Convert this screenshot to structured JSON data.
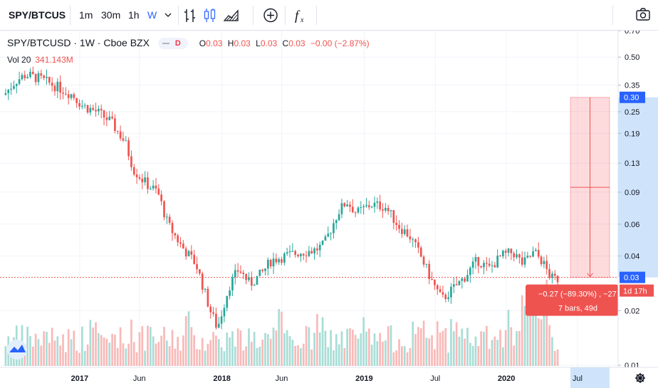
{
  "toolbar": {
    "symbol": "SPY/BTCUSD",
    "intervals": [
      "1m",
      "30m",
      "1h",
      "W"
    ],
    "active_interval": "W",
    "icons": [
      "chevron-down-icon",
      "bar-chart-icon",
      "candles-icon",
      "area-chart-icon",
      "add-compare-icon",
      "indicators-icon",
      "camera-icon"
    ]
  },
  "legend": {
    "title": "SPY/BTCUSD · 1W · Cboe BZX",
    "badge": "D",
    "o_label": "O",
    "o_value": "0.03",
    "h_label": "H",
    "h_value": "0.03",
    "l_label": "L",
    "l_value": "0.03",
    "c_label": "C",
    "c_value": "0.03",
    "change": "−0.00 (−2.87%)"
  },
  "volume": {
    "label": "Vol 20",
    "value": "341.143M"
  },
  "colors": {
    "up": "#26a69a",
    "down": "#ef5350",
    "accent": "#2962ff",
    "volume_up": "#a8ddd6",
    "volume_down": "#f8b9b8"
  },
  "measure": {
    "line1": "−0.27 (−89.30%) , −27",
    "line2": "7 bars, 49d",
    "top_price": "0.30",
    "countdown": "1d 17h"
  },
  "chart_data": {
    "type": "candlestick",
    "scale": "log",
    "last_price": "0.03",
    "y_ticks": [
      "0.70",
      "0.50",
      "0.35",
      "0.25",
      "0.19",
      "0.13",
      "0.09",
      "0.06",
      "0.04",
      "0.02",
      "0.01"
    ],
    "y_tick_values": [
      0.7,
      0.5,
      0.35,
      0.25,
      0.19,
      0.13,
      0.09,
      0.06,
      0.04,
      0.02,
      0.01
    ],
    "x_ticks": [
      "2017",
      "Jun",
      "2018",
      "Jun",
      "2019",
      "Jul",
      "2020",
      "Jul"
    ],
    "x_tick_bold": [
      true,
      false,
      true,
      false,
      true,
      false,
      true,
      false
    ],
    "x_tick_times": [
      2017.0,
      2017.42,
      2018.0,
      2018.42,
      2019.0,
      2019.5,
      2020.0,
      2020.5
    ],
    "x_range": [
      2016.47,
      2020.37
    ],
    "anchors": [
      [
        2016.47,
        0.31
      ],
      [
        2016.55,
        0.37
      ],
      [
        2016.62,
        0.4
      ],
      [
        2016.72,
        0.38
      ],
      [
        2016.85,
        0.34
      ],
      [
        2016.95,
        0.31
      ],
      [
        2017.02,
        0.27
      ],
      [
        2017.12,
        0.25
      ],
      [
        2017.22,
        0.22
      ],
      [
        2017.32,
        0.17
      ],
      [
        2017.38,
        0.12
      ],
      [
        2017.47,
        0.1
      ],
      [
        2017.55,
        0.09
      ],
      [
        2017.62,
        0.06
      ],
      [
        2017.72,
        0.045
      ],
      [
        2017.82,
        0.036
      ],
      [
        2017.92,
        0.02
      ],
      [
        2017.97,
        0.016
      ],
      [
        2018.05,
        0.027
      ],
      [
        2018.12,
        0.034
      ],
      [
        2018.2,
        0.028
      ],
      [
        2018.28,
        0.032
      ],
      [
        2018.35,
        0.038
      ],
      [
        2018.45,
        0.04
      ],
      [
        2018.55,
        0.042
      ],
      [
        2018.65,
        0.043
      ],
      [
        2018.72,
        0.046
      ],
      [
        2018.82,
        0.07
      ],
      [
        2018.88,
        0.08
      ],
      [
        2018.95,
        0.069
      ],
      [
        2019.05,
        0.077
      ],
      [
        2019.15,
        0.075
      ],
      [
        2019.25,
        0.058
      ],
      [
        2019.32,
        0.052
      ],
      [
        2019.4,
        0.04
      ],
      [
        2019.48,
        0.029
      ],
      [
        2019.55,
        0.023
      ],
      [
        2019.62,
        0.026
      ],
      [
        2019.7,
        0.03
      ],
      [
        2019.8,
        0.038
      ],
      [
        2019.88,
        0.034
      ],
      [
        2019.97,
        0.04
      ],
      [
        2020.05,
        0.042
      ],
      [
        2020.12,
        0.036
      ],
      [
        2020.2,
        0.042
      ],
      [
        2020.25,
        0.038
      ],
      [
        2020.32,
        0.03
      ],
      [
        2020.37,
        0.03
      ]
    ]
  }
}
